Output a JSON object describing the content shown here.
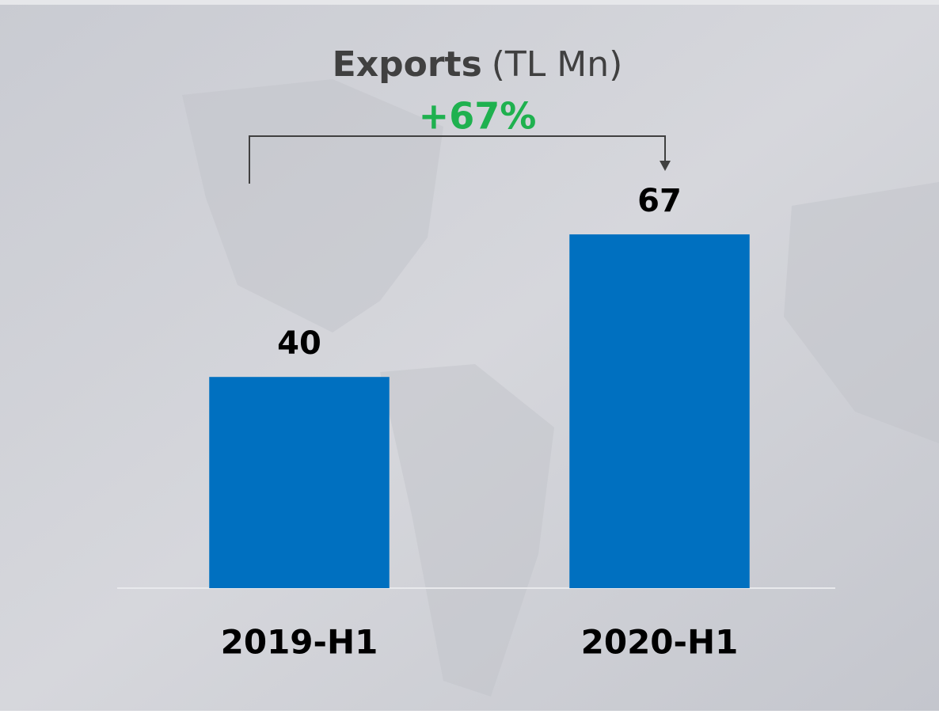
{
  "chart_data": {
    "type": "bar",
    "title": "Exports",
    "title_unit": "(TL Mn)",
    "annotation": "+67%",
    "categories": [
      "2019-H1",
      "2020-H1"
    ],
    "values": [
      40,
      67
    ],
    "color": "#0070c0",
    "ylim": [
      0,
      100
    ]
  }
}
